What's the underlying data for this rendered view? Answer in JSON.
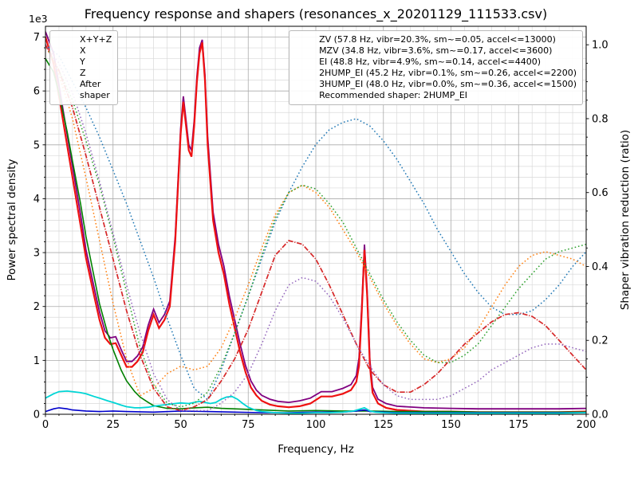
{
  "chart_data": {
    "type": "line",
    "title": "Frequency response and shapers (resonances_x_20201129_111533.csv)",
    "xlabel": "Frequency, Hz",
    "ylabel_left": "Power spectral density",
    "ylabel_right": "Shaper vibration reduction (ratio)",
    "y_left_multiplier": "1e3",
    "grid": true,
    "legend_position": [
      "upper left",
      "upper right"
    ],
    "x_range": [
      0,
      200
    ],
    "y_left_range": [
      0,
      7.2
    ],
    "y_right_range": [
      0,
      1.05
    ],
    "x_ticks": [
      0,
      25,
      50,
      75,
      100,
      125,
      150,
      175,
      200
    ],
    "x_minor_step": 5,
    "y_left_ticks": [
      0,
      1,
      2,
      3,
      4,
      5,
      6,
      7
    ],
    "y_left_minor_step": 0.2,
    "y_right_ticks": [
      0.0,
      0.2,
      0.4,
      0.6,
      0.8,
      1.0
    ],
    "y_right_minor_step": 0.05,
    "recommended_shaper": "2HUMP_EI",
    "legend_note": "Recommended shaper: 2HUMP_EI",
    "colors": {
      "xyz": "#800080",
      "x": "#ee1111",
      "y": "#008000",
      "z": "#0000cc",
      "after_shaper": "#00d5d5",
      "zv": "#1f77b4",
      "mzv": "#ff7f0e",
      "ei": "#2ca02c",
      "hump2_ei": "#d62728",
      "hump3_ei": "#9467bd"
    },
    "psd_series": [
      {
        "name": "X+Y+Z",
        "id": "xyz",
        "label": "X+Y+Z",
        "color": "#800080",
        "style": "solid",
        "width": 1.8,
        "axis": "left",
        "x": [
          0,
          3,
          5,
          8,
          10,
          13,
          15,
          18,
          20,
          22,
          24,
          26,
          28,
          30,
          32,
          34,
          36,
          38,
          40,
          42,
          44,
          46,
          48,
          50,
          51,
          52,
          53,
          54,
          55,
          56,
          57,
          58,
          59,
          60,
          62,
          64,
          66,
          68,
          70,
          72,
          74,
          76,
          78,
          80,
          83,
          86,
          90,
          94,
          98,
          102,
          106,
          110,
          113,
          115,
          116,
          117,
          118,
          119,
          120,
          121,
          123,
          126,
          130,
          140,
          150,
          160,
          170,
          180,
          190,
          200
        ],
        "y": [
          7.1,
          6.7,
          6.1,
          5.2,
          4.6,
          3.7,
          3.05,
          2.35,
          1.9,
          1.55,
          1.42,
          1.44,
          1.2,
          0.98,
          0.98,
          1.08,
          1.25,
          1.65,
          1.95,
          1.7,
          1.85,
          2.1,
          3.3,
          5.3,
          5.9,
          5.45,
          5.0,
          4.9,
          5.45,
          6.25,
          6.8,
          6.95,
          6.3,
          5.15,
          3.75,
          3.15,
          2.75,
          2.2,
          1.75,
          1.3,
          0.9,
          0.62,
          0.45,
          0.35,
          0.28,
          0.24,
          0.22,
          0.25,
          0.3,
          0.42,
          0.42,
          0.48,
          0.55,
          0.72,
          1.05,
          2.0,
          3.15,
          2.3,
          1.0,
          0.5,
          0.28,
          0.2,
          0.15,
          0.12,
          0.11,
          0.1,
          0.1,
          0.1,
          0.1,
          0.11
        ]
      },
      {
        "name": "X",
        "id": "x",
        "label": "X",
        "color": "#ee1111",
        "style": "solid",
        "width": 2.2,
        "axis": "left",
        "x": [
          0,
          3,
          5,
          8,
          10,
          13,
          15,
          18,
          20,
          22,
          24,
          26,
          28,
          30,
          32,
          34,
          36,
          38,
          40,
          42,
          44,
          46,
          48,
          50,
          51,
          52,
          53,
          54,
          55,
          56,
          57,
          58,
          59,
          60,
          62,
          64,
          66,
          68,
          70,
          72,
          74,
          76,
          78,
          80,
          83,
          86,
          90,
          94,
          98,
          102,
          106,
          110,
          113,
          115,
          116,
          117,
          118,
          119,
          120,
          121,
          123,
          126,
          130,
          140,
          150,
          160,
          170,
          180,
          190,
          200
        ],
        "y": [
          7.0,
          6.5,
          5.9,
          5.0,
          4.4,
          3.5,
          2.9,
          2.2,
          1.75,
          1.42,
          1.3,
          1.32,
          1.1,
          0.88,
          0.88,
          0.98,
          1.15,
          1.55,
          1.85,
          1.6,
          1.75,
          2.0,
          3.2,
          5.2,
          5.8,
          5.35,
          4.9,
          4.78,
          5.35,
          6.15,
          6.7,
          6.9,
          6.2,
          5.0,
          3.6,
          3.0,
          2.6,
          2.05,
          1.6,
          1.15,
          0.78,
          0.5,
          0.35,
          0.25,
          0.18,
          0.15,
          0.13,
          0.15,
          0.2,
          0.33,
          0.33,
          0.38,
          0.45,
          0.6,
          0.9,
          1.9,
          3.05,
          2.2,
          0.9,
          0.4,
          0.2,
          0.12,
          0.08,
          0.05,
          0.05,
          0.04,
          0.04,
          0.04,
          0.04,
          0.05
        ]
      },
      {
        "name": "Y",
        "id": "y",
        "label": "Y",
        "color": "#008000",
        "style": "solid",
        "width": 1.6,
        "axis": "left",
        "x": [
          0,
          3,
          5,
          8,
          10,
          13,
          15,
          18,
          20,
          23,
          25,
          28,
          30,
          33,
          35,
          38,
          40,
          45,
          50,
          55,
          60,
          65,
          70,
          80,
          90,
          100,
          110,
          120,
          130,
          140,
          150,
          160,
          170,
          180,
          190,
          200
        ],
        "y": [
          6.6,
          6.35,
          5.95,
          5.25,
          4.7,
          3.9,
          3.3,
          2.55,
          2.05,
          1.5,
          1.2,
          0.82,
          0.62,
          0.42,
          0.32,
          0.22,
          0.16,
          0.11,
          0.1,
          0.12,
          0.13,
          0.11,
          0.1,
          0.08,
          0.06,
          0.07,
          0.06,
          0.06,
          0.05,
          0.05,
          0.05,
          0.04,
          0.04,
          0.04,
          0.04,
          0.04
        ]
      },
      {
        "name": "Z",
        "id": "z",
        "label": "Z",
        "color": "#0000cc",
        "style": "solid",
        "width": 1.6,
        "axis": "left",
        "x": [
          0,
          3,
          5,
          8,
          10,
          15,
          20,
          25,
          30,
          40,
          50,
          60,
          70,
          80,
          90,
          100,
          110,
          115,
          118,
          120,
          130,
          140,
          150,
          160,
          170,
          180,
          190,
          200
        ],
        "y": [
          0.05,
          0.1,
          0.12,
          0.1,
          0.08,
          0.06,
          0.05,
          0.06,
          0.05,
          0.04,
          0.06,
          0.05,
          0.04,
          0.03,
          0.03,
          0.04,
          0.04,
          0.06,
          0.08,
          0.05,
          0.03,
          0.03,
          0.03,
          0.03,
          0.03,
          0.03,
          0.03,
          0.03
        ]
      },
      {
        "name": "After shaper",
        "id": "after-shaper",
        "label": "After\nshaper",
        "color": "#00d5d5",
        "style": "solid",
        "width": 1.8,
        "axis": "left",
        "x": [
          0,
          3,
          5,
          8,
          10,
          13,
          15,
          18,
          20,
          23,
          25,
          28,
          30,
          33,
          35,
          38,
          40,
          43,
          45,
          48,
          50,
          53,
          55,
          57,
          59,
          61,
          63,
          65,
          67,
          69,
          71,
          73,
          75,
          78,
          80,
          85,
          90,
          95,
          100,
          105,
          110,
          114,
          116,
          118,
          120,
          122,
          125,
          130,
          140,
          150,
          160,
          170,
          180,
          190,
          200
        ],
        "y": [
          0.3,
          0.38,
          0.42,
          0.43,
          0.42,
          0.4,
          0.38,
          0.33,
          0.3,
          0.25,
          0.22,
          0.17,
          0.14,
          0.12,
          0.12,
          0.13,
          0.15,
          0.17,
          0.18,
          0.2,
          0.21,
          0.2,
          0.22,
          0.24,
          0.22,
          0.2,
          0.22,
          0.28,
          0.32,
          0.33,
          0.28,
          0.2,
          0.13,
          0.07,
          0.05,
          0.03,
          0.02,
          0.02,
          0.03,
          0.03,
          0.04,
          0.06,
          0.09,
          0.12,
          0.06,
          0.04,
          0.03,
          0.02,
          0.02,
          0.02,
          0.02,
          0.02,
          0.02,
          0.02,
          0.03
        ]
      }
    ],
    "shaper_x": [
      0,
      5,
      10,
      15,
      20,
      25,
      30,
      35,
      40,
      45,
      50,
      55,
      60,
      65,
      70,
      75,
      80,
      85,
      90,
      95,
      100,
      105,
      110,
      115,
      120,
      125,
      130,
      135,
      140,
      145,
      150,
      155,
      160,
      165,
      170,
      175,
      180,
      185,
      190,
      195,
      200
    ],
    "shaper_series": [
      {
        "name": "ZV",
        "id": "zv",
        "label": "ZV (57.8 Hz, vibr=20.3%, sm~=0.05, accel<=13000)",
        "color": "#1f77b4",
        "style": "dotted",
        "width": 1.5,
        "axis": "right",
        "y": [
          1.0,
          0.97,
          0.9,
          0.83,
          0.75,
          0.66,
          0.57,
          0.47,
          0.37,
          0.26,
          0.16,
          0.07,
          0.04,
          0.12,
          0.22,
          0.32,
          0.42,
          0.52,
          0.6,
          0.67,
          0.73,
          0.77,
          0.79,
          0.8,
          0.78,
          0.74,
          0.69,
          0.63,
          0.57,
          0.5,
          0.44,
          0.38,
          0.33,
          0.29,
          0.27,
          0.27,
          0.28,
          0.31,
          0.35,
          0.4,
          0.44
        ]
      },
      {
        "name": "MZV",
        "id": "mzv",
        "label": "MZV (34.8 Hz, vibr=3.6%, sm~=0.17, accel<=3600)",
        "color": "#ff7f0e",
        "style": "dotted",
        "width": 1.5,
        "axis": "right",
        "y": [
          1.0,
          0.92,
          0.8,
          0.64,
          0.47,
          0.3,
          0.15,
          0.05,
          0.07,
          0.11,
          0.13,
          0.12,
          0.13,
          0.18,
          0.26,
          0.35,
          0.45,
          0.54,
          0.6,
          0.62,
          0.6,
          0.56,
          0.5,
          0.44,
          0.37,
          0.3,
          0.24,
          0.19,
          0.15,
          0.14,
          0.15,
          0.18,
          0.23,
          0.29,
          0.35,
          0.4,
          0.43,
          0.44,
          0.43,
          0.42,
          0.4
        ]
      },
      {
        "name": "EI",
        "id": "ei",
        "label": "EI (48.8 Hz, vibr=4.9%, sm~=0.14, accel<=4400)",
        "color": "#2ca02c",
        "style": "dotted",
        "width": 1.5,
        "axis": "right",
        "y": [
          1.0,
          0.93,
          0.85,
          0.74,
          0.62,
          0.48,
          0.33,
          0.18,
          0.08,
          0.03,
          0.02,
          0.03,
          0.06,
          0.13,
          0.22,
          0.32,
          0.43,
          0.53,
          0.6,
          0.62,
          0.61,
          0.57,
          0.52,
          0.45,
          0.38,
          0.31,
          0.25,
          0.2,
          0.16,
          0.14,
          0.14,
          0.16,
          0.19,
          0.24,
          0.29,
          0.34,
          0.38,
          0.42,
          0.44,
          0.45,
          0.46
        ]
      },
      {
        "name": "2HUMP_EI",
        "id": "2hump-ei",
        "label": "2HUMP_EI (45.2 Hz, vibr=0.1%, sm~=0.26, accel<=2200)",
        "color": "#d62728",
        "style": "dashdot",
        "width": 1.7,
        "axis": "right",
        "y": [
          1.0,
          0.93,
          0.83,
          0.7,
          0.56,
          0.42,
          0.28,
          0.16,
          0.07,
          0.02,
          0.01,
          0.02,
          0.04,
          0.09,
          0.15,
          0.23,
          0.33,
          0.43,
          0.47,
          0.46,
          0.42,
          0.35,
          0.27,
          0.19,
          0.12,
          0.08,
          0.06,
          0.06,
          0.08,
          0.11,
          0.15,
          0.19,
          0.22,
          0.25,
          0.27,
          0.275,
          0.265,
          0.24,
          0.2,
          0.16,
          0.12
        ]
      },
      {
        "name": "3HUMP_EI",
        "id": "3hump-ei",
        "label": "3HUMP_EI (48.0 Hz, vibr=0.0%, sm~=0.36, accel<=1500)",
        "color": "#9467bd",
        "style": "dotted",
        "width": 1.5,
        "axis": "right",
        "y": [
          1.0,
          0.95,
          0.87,
          0.76,
          0.63,
          0.49,
          0.35,
          0.22,
          0.11,
          0.04,
          0.01,
          0.01,
          0.01,
          0.03,
          0.06,
          0.11,
          0.19,
          0.28,
          0.35,
          0.37,
          0.36,
          0.32,
          0.26,
          0.19,
          0.13,
          0.08,
          0.05,
          0.04,
          0.04,
          0.04,
          0.05,
          0.07,
          0.09,
          0.12,
          0.14,
          0.16,
          0.18,
          0.19,
          0.19,
          0.18,
          0.17
        ]
      }
    ]
  }
}
